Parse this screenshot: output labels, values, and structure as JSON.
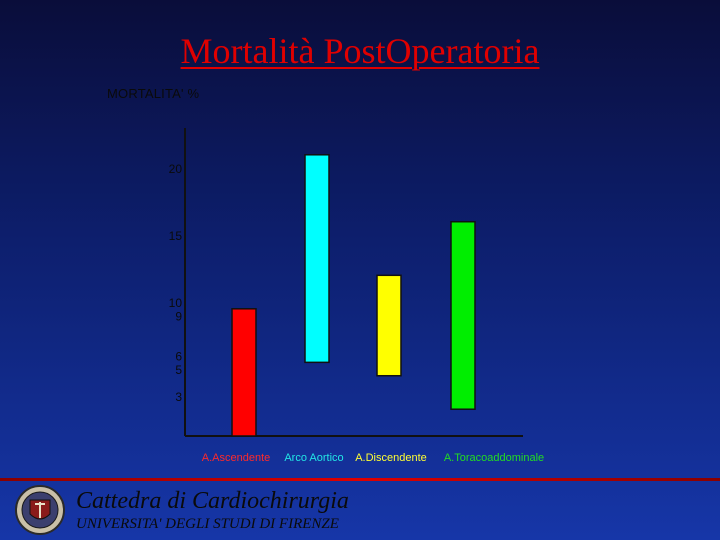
{
  "slide": {
    "title": "Mortalità PostOperatoria",
    "footer_line1": "Cattedra di Cardiochirurgia",
    "footer_line2": "UNIVERSITA' DEGLI STUDI DI FIRENZE"
  },
  "chart_data": {
    "type": "bar",
    "title": "",
    "ylabel": "MORTALITA' %",
    "xlabel": "",
    "ylim": [
      0,
      23
    ],
    "yticks": [
      20,
      15,
      10,
      9,
      6,
      5,
      3
    ],
    "grid": false,
    "categories": [
      "A.Ascendente",
      "Arco Aortico",
      "A.Discendente",
      "A.Toracoaddominale"
    ],
    "ranges": [
      [
        0,
        9.5
      ],
      [
        5.5,
        21
      ],
      [
        4.5,
        12
      ],
      [
        2,
        16
      ]
    ],
    "colors": [
      "#ff0000",
      "#00ffff",
      "#ffff00",
      "#00ee00"
    ],
    "label_colors": [
      "#ff2a2a",
      "#22e6e6",
      "#ffff33",
      "#22dd22"
    ]
  }
}
